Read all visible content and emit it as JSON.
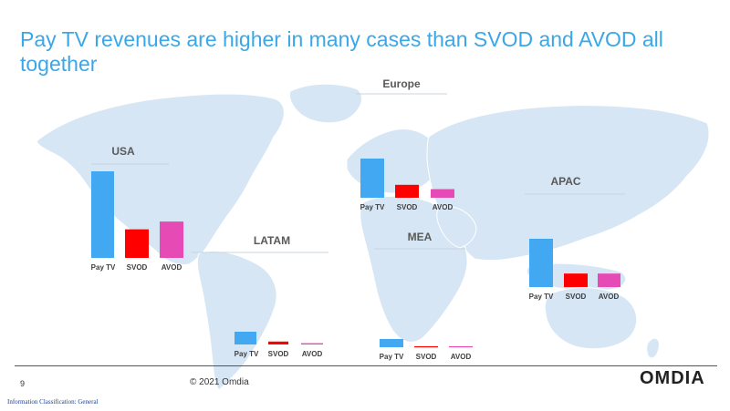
{
  "title": "Pay TV revenues are higher in many cases than  SVOD and AVOD all together",
  "footer": {
    "page_number": "9",
    "copyright": "© 2021 Omdia",
    "logo": "OMDIA",
    "classification": "Information Classification: General"
  },
  "colors": {
    "map": "#d6e6f5",
    "map_outline": "#ffffff",
    "title": "#3aa7e8",
    "Pay TV": "#41a8f1",
    "SVOD": "#ff0000",
    "AVOD": "#e64bb5"
  },
  "chart_data": [
    {
      "type": "bar",
      "region": "USA",
      "categories": [
        "Pay TV",
        "SVOD",
        "AVOD"
      ],
      "values": [
        100,
        33,
        42
      ]
    },
    {
      "type": "bar",
      "region": "Europe",
      "categories": [
        "Pay TV",
        "SVOD",
        "AVOD"
      ],
      "values": [
        100,
        33,
        22
      ]
    },
    {
      "type": "bar",
      "region": "APAC",
      "categories": [
        "Pay TV",
        "SVOD",
        "AVOD"
      ],
      "values": [
        100,
        28,
        28
      ]
    },
    {
      "type": "bar",
      "region": "LATAM",
      "categories": [
        "Pay TV",
        "SVOD",
        "AVOD"
      ],
      "values": [
        100,
        23,
        10
      ]
    },
    {
      "type": "bar",
      "region": "MEA",
      "categories": [
        "Pay TV",
        "SVOD",
        "AVOD"
      ],
      "values": [
        100,
        12,
        12
      ]
    }
  ]
}
